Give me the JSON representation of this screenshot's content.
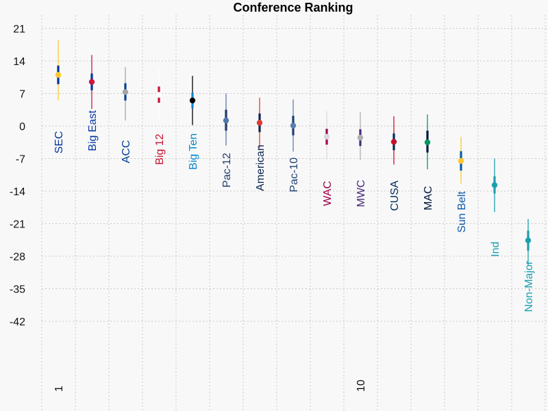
{
  "chart_data": {
    "type": "scatter",
    "title": "Conference Ranking",
    "xlabel": "",
    "ylabel": "",
    "ylim": [
      -53,
      23
    ],
    "y_ticks": [
      21,
      14,
      7,
      0,
      -7,
      -14,
      -21,
      -28,
      -35,
      -42
    ],
    "x_ticks": [
      {
        "rank": 1,
        "label": "1"
      },
      {
        "rank": 10,
        "label": "10"
      }
    ],
    "grid": true,
    "series": [
      {
        "name": "SEC",
        "rank": 1,
        "mean": 11.0,
        "inner": [
          9.0,
          13.0
        ],
        "outer": [
          5.5,
          18.5
        ],
        "color": "#FFC72C",
        "inner_color": "#0033A0",
        "label_color": "#0033A0",
        "label_y": -3.5
      },
      {
        "name": "Big East",
        "rank": 2,
        "mean": 9.5,
        "inner": [
          7.7,
          11.3
        ],
        "outer": [
          3.7,
          15.3
        ],
        "color": "#D11241",
        "inner_color": "#0033A0",
        "label_color": "#0033A0",
        "label_y": -1.0
      },
      {
        "name": "ACC",
        "rank": 3,
        "mean": 7.3,
        "inner": [
          5.5,
          9.2
        ],
        "outer": [
          1.2,
          12.7
        ],
        "color": "#A5A5A5",
        "inner_color": "#003D99",
        "label_color": "#003D99",
        "label_y": -5.5
      },
      {
        "name": "Big 12",
        "rank": 4,
        "mean": 6.7,
        "inner": [
          5.0,
          8.5
        ],
        "outer": [
          1.8,
          12.3
        ],
        "color": "#FFFFFF",
        "inner_color": "#C8102E",
        "label_color": "#C8102E",
        "label_y": -5.0
      },
      {
        "name": "Big Ten",
        "rank": 5,
        "mean": 5.5,
        "inner": [
          3.8,
          7.2
        ],
        "outer": [
          0.2,
          10.8
        ],
        "color": "#000000",
        "inner_color": "#0088CE",
        "label_color": "#0088CE",
        "label_y": -5.5
      },
      {
        "name": "Pac-12",
        "rank": 6,
        "mean": 1.2,
        "inner": [
          -1.0,
          3.5
        ],
        "outer": [
          -4.2,
          7.0
        ],
        "color": "#5577AA",
        "inner_color": "#1F3A68",
        "label_color": "#1F3A68",
        "label_y": -9.5
      },
      {
        "name": "American",
        "rank": 7,
        "mean": 0.7,
        "inner": [
          -1.3,
          2.7
        ],
        "outer": [
          -4.8,
          6.1
        ],
        "color": "#E03C31",
        "inner_color": "#0A2351",
        "label_color": "#0A2351",
        "label_y": -9.0
      },
      {
        "name": "Pac-10",
        "rank": 8,
        "mean": 0.1,
        "inner": [
          -2.0,
          2.2
        ],
        "outer": [
          -5.5,
          5.7
        ],
        "color": "#5A7FB0",
        "inner_color": "#1E3F73",
        "label_color": "#1E3F73",
        "label_y": -10.5
      },
      {
        "name": "WAC",
        "rank": 9,
        "mean": -2.3,
        "inner": [
          -4.0,
          -0.6
        ],
        "outer": [
          -7.2,
          3.2
        ],
        "color": "#D9D9D9",
        "inner_color": "#A0004B",
        "label_color": "#A0004B",
        "label_y": -14.5
      },
      {
        "name": "MWC",
        "rank": 10,
        "mean": -2.5,
        "inner": [
          -4.3,
          -0.7
        ],
        "outer": [
          -7.3,
          3.0
        ],
        "color": "#B0B0B0",
        "inner_color": "#4B2A7B",
        "label_color": "#4B2A7B",
        "label_y": -14.5
      },
      {
        "name": "CUSA",
        "rank": 11,
        "mean": -3.4,
        "inner": [
          -5.2,
          -1.6
        ],
        "outer": [
          -8.3,
          2.1
        ],
        "color": "#C8102E",
        "inner_color": "#002D5B",
        "label_color": "#002D5B",
        "label_y": -15.0
      },
      {
        "name": "MAC",
        "rank": 12,
        "mean": -3.5,
        "inner": [
          -5.7,
          -1.0
        ],
        "outer": [
          -9.3,
          2.5
        ],
        "color": "#009A5E",
        "inner_color": "#06153F",
        "label_color": "#06153F",
        "label_y": -15.5
      },
      {
        "name": "Sun Belt",
        "rank": 13,
        "mean": -7.5,
        "inner": [
          -9.6,
          -5.4
        ],
        "outer": [
          -12.4,
          -2.3
        ],
        "color": "#FFC72C",
        "inner_color": "#0A5BA8",
        "label_color": "#0A5BA8",
        "label_y": -18.5
      },
      {
        "name": "Ind",
        "rank": 14,
        "mean": -12.7,
        "inner": [
          -14.5,
          -10.8
        ],
        "outer": [
          -18.5,
          -7.0
        ],
        "color": "#1A9FAF",
        "inner_color": "#1A9FAF",
        "label_color": "#1A9FAF",
        "label_y": -26.5
      },
      {
        "name": "Non-Major",
        "rank": 15,
        "mean": -24.6,
        "inner": [
          -26.8,
          -22.5
        ],
        "outer": [
          -30.0,
          -20.0
        ],
        "color": "#1A9FAF",
        "inner_color": "#1A9FAF",
        "label_color": "#1A9FAF",
        "label_y": -34.5
      }
    ]
  }
}
